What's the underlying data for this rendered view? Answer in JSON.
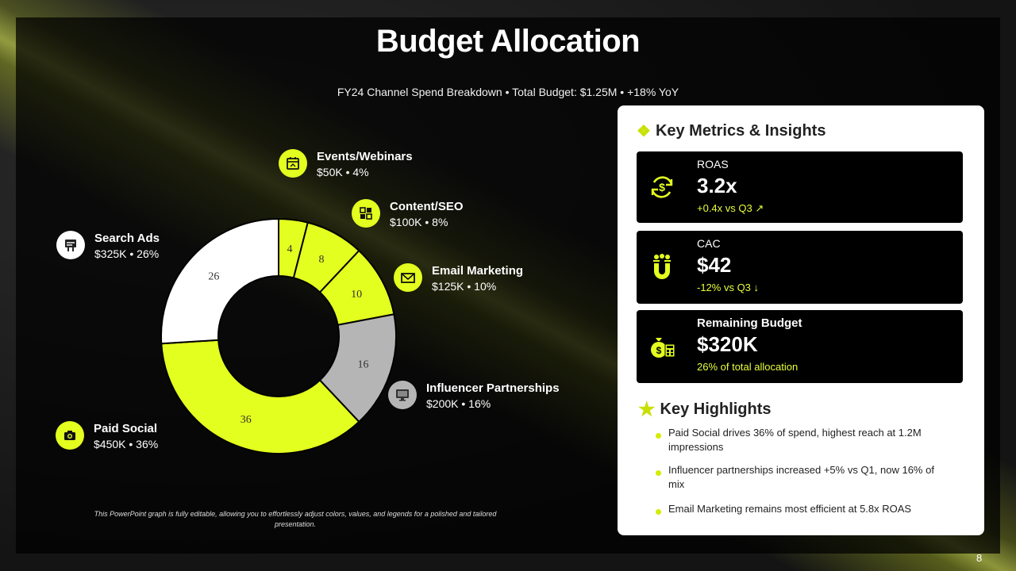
{
  "title": "Budget Allocation",
  "subtitle": "FY24 Channel Spend Breakdown • Total Budget: $1.25M • +18% YoY",
  "colors": {
    "accent": "#e3ff1f",
    "accent_dark": "#c8e000",
    "white": "#ffffff",
    "gray": "#b5b5b5",
    "panel": "#000000"
  },
  "chart_data": {
    "type": "pie",
    "donut": true,
    "categories": [
      "Events/Webinars",
      "Content/SEO",
      "Email Marketing",
      "Influencer Partnerships",
      "Paid Social",
      "Search Ads"
    ],
    "values": [
      4,
      8,
      10,
      16,
      36,
      26
    ],
    "segment_colors": [
      "#e3ff1f",
      "#e3ff1f",
      "#e3ff1f",
      "#b5b5b5",
      "#e3ff1f",
      "#ffffff"
    ],
    "data_labels": [
      "4",
      "8",
      "10",
      "16",
      "36",
      "26"
    ]
  },
  "legend": [
    {
      "name": "Events/Webinars",
      "value": "$50K • 4%",
      "icon": "calendar-icon",
      "style": "accent"
    },
    {
      "name": "Content/SEO",
      "value": "$100K • 8%",
      "icon": "content-icon",
      "style": "accent"
    },
    {
      "name": "Email Marketing",
      "value": "$125K • 10%",
      "icon": "mail-icon",
      "style": "accent"
    },
    {
      "name": "Influencer Partnerships",
      "value": "$200K • 16%",
      "icon": "monitor-icon",
      "style": "gray"
    },
    {
      "name": "Paid Social",
      "value": "$450K • 36%",
      "icon": "camera-icon",
      "style": "accent"
    },
    {
      "name": "Search Ads",
      "value": "$325K • 26%",
      "icon": "billboard-icon",
      "style": "white"
    }
  ],
  "footnote": "This PowerPoint graph is fully editable, allowing you to effortlessly adjust colors, values, and legends for a polished and tailored presentation.",
  "metrics_panel": {
    "heading": "Key Metrics & Insights",
    "heading_icon": "diamond-sparkle-icon",
    "metrics": [
      {
        "label": "ROAS",
        "value": "3.2x",
        "delta": "+0.4x vs Q3 ↗",
        "icon": "dollar-cycle-icon"
      },
      {
        "label": "CAC",
        "value": "$42",
        "delta": "-12% vs Q3 ↓",
        "icon": "magnet-users-icon"
      },
      {
        "label": "Remaining Budget",
        "value": "$320K",
        "delta": "26% of total allocation",
        "icon": "money-bag-calculator-icon"
      }
    ],
    "highlights_heading": "Key Highlights",
    "highlights_icon": "star-icon",
    "highlights": [
      "Paid Social drives 36% of spend, highest reach at 1.2M impressions",
      "Influencer partnerships increased +5% vs Q1, now 16% of mix",
      "Email Marketing remains most efficient at 5.8x ROAS"
    ]
  },
  "page_number": "8"
}
